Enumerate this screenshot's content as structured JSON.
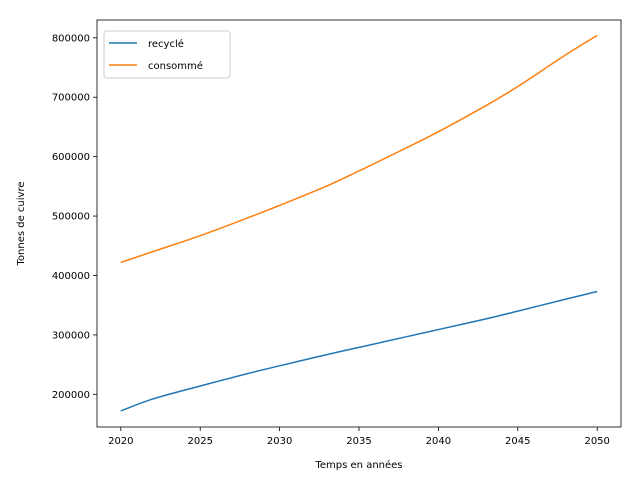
{
  "chart_data": {
    "type": "line",
    "title": "",
    "xlabel": "Temps en années",
    "ylabel": "Tonnes de cuivre",
    "xlim": [
      2018.5,
      2051.5
    ],
    "ylim": [
      145000,
      830000
    ],
    "xticks": [
      2020,
      2025,
      2030,
      2035,
      2040,
      2045,
      2050
    ],
    "yticks": [
      200000,
      300000,
      400000,
      500000,
      600000,
      700000,
      800000
    ],
    "grid": false,
    "legend_position": "upper-left",
    "series": [
      {
        "name": "recyclé",
        "color": "#1f77b4",
        "x": [
          2020,
          2022,
          2025,
          2028,
          2030,
          2033,
          2035,
          2038,
          2040,
          2043,
          2045,
          2048,
          2050
        ],
        "values": [
          172000,
          192000,
          214000,
          235000,
          248000,
          267000,
          279000,
          297000,
          309000,
          327000,
          340000,
          360000,
          373000
        ]
      },
      {
        "name": "consommé",
        "color": "#ff7f0e",
        "x": [
          2020,
          2022,
          2025,
          2028,
          2030,
          2033,
          2035,
          2038,
          2040,
          2043,
          2045,
          2048,
          2050
        ],
        "values": [
          422000,
          440000,
          467000,
          497000,
          518000,
          551000,
          576000,
          615000,
          642000,
          686000,
          718000,
          771000,
          804000
        ]
      }
    ]
  }
}
